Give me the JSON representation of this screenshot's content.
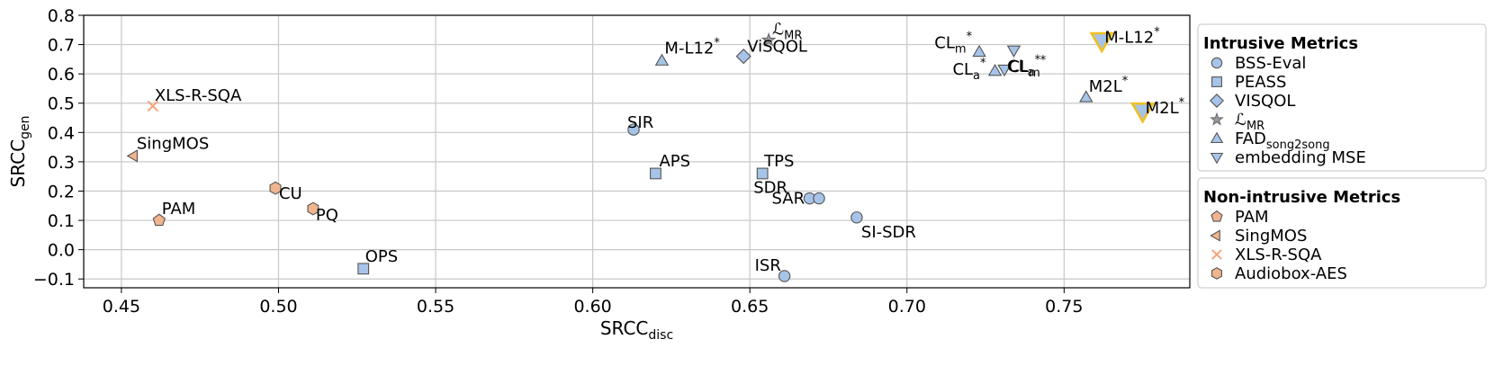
{
  "chart_data": {
    "type": "scatter",
    "xlabel": "SRCC",
    "xlabel_sub": "disc",
    "ylabel": "SRCC",
    "ylabel_sub": "gen",
    "xlim": [
      0.438,
      0.79
    ],
    "ylim": [
      -0.13,
      0.8
    ],
    "xticks": [
      0.45,
      0.5,
      0.55,
      0.6,
      0.65,
      0.7,
      0.75
    ],
    "xtick_labels": [
      "0.45",
      "0.50",
      "0.55",
      "0.60",
      "0.65",
      "0.70",
      "0.75"
    ],
    "yticks": [
      -0.1,
      0.0,
      0.1,
      0.2,
      0.3,
      0.4,
      0.5,
      0.6,
      0.7,
      0.8
    ],
    "ytick_labels": [
      "−0.1",
      "0.0",
      "0.1",
      "0.2",
      "0.3",
      "0.4",
      "0.5",
      "0.6",
      "0.7",
      "0.8"
    ],
    "grid": true,
    "colors": {
      "intrusive": "#a7c4e8",
      "pam": "#f0b48e",
      "xls": "#f5a37a",
      "edge": "#555555",
      "highlight": "#f0c020"
    },
    "legends": [
      {
        "title": "Intrusive Metrics",
        "placement": "right-top",
        "entries": [
          {
            "label": "BSS-Eval",
            "marker": "circle"
          },
          {
            "label": "PEASS",
            "marker": "square"
          },
          {
            "label": "VISQOL",
            "marker": "diamond"
          },
          {
            "label": "ℒ",
            "sub": "MR",
            "marker": "star"
          },
          {
            "label": "FAD",
            "sub": "song2song",
            "marker": "triangle-up"
          },
          {
            "label": "embedding MSE",
            "marker": "triangle-down"
          }
        ]
      },
      {
        "title": "Non-intrusive Metrics",
        "placement": "right-bottom",
        "entries": [
          {
            "label": "PAM",
            "marker": "pentagon"
          },
          {
            "label": "SingMOS",
            "marker": "triangle-left"
          },
          {
            "label": "XLS-R-SQA",
            "marker": "x"
          },
          {
            "label": "Audiobox-AES",
            "marker": "hexagon"
          }
        ]
      }
    ],
    "points": [
      {
        "label": "SIR",
        "x": 0.613,
        "y": 0.41,
        "marker": "circle"
      },
      {
        "label": "SAR",
        "x": 0.669,
        "y": 0.175,
        "marker": "circle"
      },
      {
        "label": "SDR",
        "x": 0.672,
        "y": 0.175,
        "marker": "circle"
      },
      {
        "label": "SI-SDR",
        "x": 0.684,
        "y": 0.11,
        "marker": "circle"
      },
      {
        "label": "ISR",
        "x": 0.661,
        "y": -0.09,
        "marker": "circle"
      },
      {
        "label": "APS",
        "x": 0.62,
        "y": 0.26,
        "marker": "square"
      },
      {
        "label": "TPS",
        "x": 0.654,
        "y": 0.26,
        "marker": "square"
      },
      {
        "label": "OPS",
        "x": 0.527,
        "y": -0.065,
        "marker": "square"
      },
      {
        "label": "ViSQOL",
        "x": 0.648,
        "y": 0.66,
        "marker": "diamond"
      },
      {
        "label": "ℒ",
        "sub": "MR",
        "x": 0.656,
        "y": 0.715,
        "marker": "star"
      },
      {
        "label": "M-L12",
        "sup": "*",
        "x": 0.622,
        "y": 0.645,
        "marker": "triangle-up"
      },
      {
        "label": "CL",
        "sub": "m",
        "sup": "*",
        "x": 0.723,
        "y": 0.675,
        "marker": "triangle-up"
      },
      {
        "label": "CL",
        "sub": "a",
        "sup": "*",
        "x": 0.728,
        "y": 0.61,
        "marker": "triangle-up"
      },
      {
        "label": "M2L",
        "sup": "*",
        "x": 0.757,
        "y": 0.52,
        "marker": "triangle-up"
      },
      {
        "label": "CL",
        "sub": "m",
        "sup": "*",
        "x": 0.734,
        "y": 0.68,
        "marker": "triangle-down"
      },
      {
        "label": "CL",
        "sub": "a",
        "sup": "*",
        "x": 0.731,
        "y": 0.615,
        "marker": "triangle-down"
      },
      {
        "label": "M-L12",
        "sup": "*",
        "x": 0.762,
        "y": 0.715,
        "marker": "triangle-down",
        "highlight": true
      },
      {
        "label": "M2L",
        "sup": "*",
        "x": 0.775,
        "y": 0.475,
        "marker": "triangle-down",
        "highlight": true
      },
      {
        "label": "XLS-R-SQA",
        "x": 0.46,
        "y": 0.49,
        "marker": "x"
      },
      {
        "label": "SingMOS",
        "x": 0.454,
        "y": 0.32,
        "marker": "triangle-left"
      },
      {
        "label": "PAM",
        "x": 0.462,
        "y": 0.1,
        "marker": "pentagon"
      },
      {
        "label": "CU",
        "x": 0.499,
        "y": 0.21,
        "marker": "hexagon"
      },
      {
        "label": "PQ",
        "x": 0.511,
        "y": 0.14,
        "marker": "hexagon"
      }
    ]
  }
}
